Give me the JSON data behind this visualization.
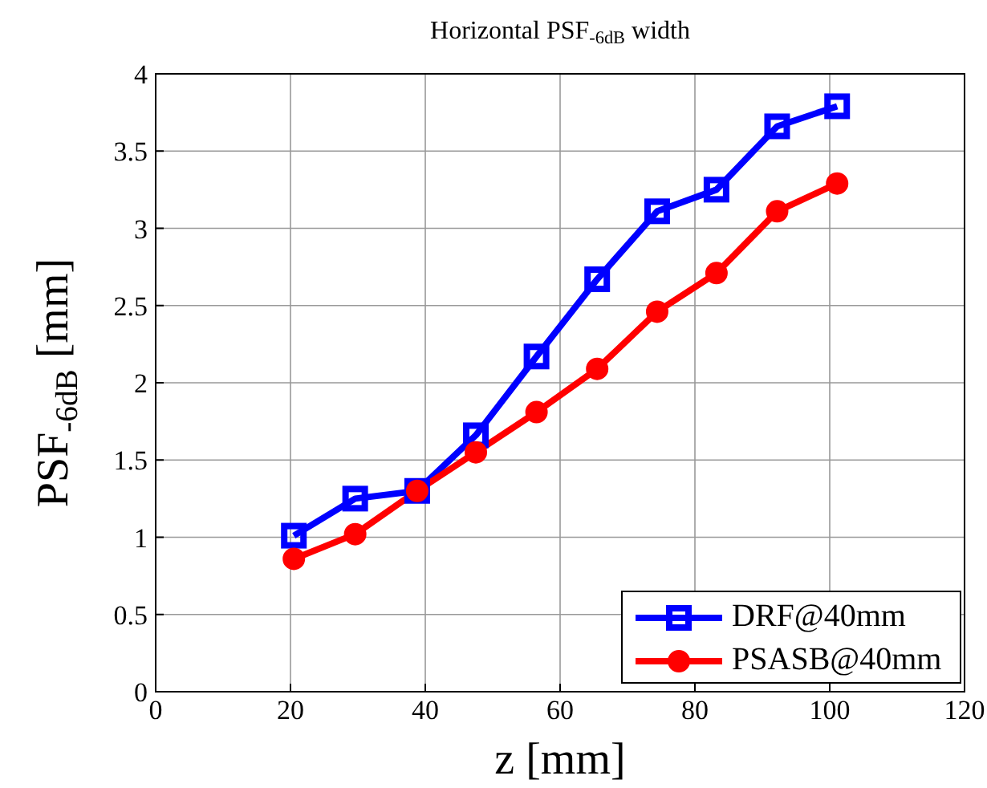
{
  "chart_data": {
    "type": "line",
    "title": "Horizontal PSF$_{-6dB}$ width",
    "xlabel": "z [mm]",
    "ylabel": "PSF$_{-6dB}$ [mm]",
    "x": [
      20.5,
      29.6,
      38.8,
      47.5,
      56.5,
      65.5,
      74.4,
      83.2,
      92.2,
      101.1
    ],
    "series": [
      {
        "name": "DRF@40mm",
        "color": "#0000ff",
        "marker": "square",
        "values": [
          1.01,
          1.25,
          1.3,
          1.66,
          2.17,
          2.67,
          3.11,
          3.25,
          3.66,
          3.79
        ]
      },
      {
        "name": "PSASB@40mm",
        "color": "#ff0000",
        "marker": "circle",
        "values": [
          0.86,
          1.02,
          1.3,
          1.55,
          1.81,
          2.09,
          2.46,
          2.71,
          3.11,
          3.29
        ]
      }
    ],
    "xlim": [
      0,
      120
    ],
    "xticks": [
      0,
      20,
      40,
      60,
      80,
      100,
      120
    ],
    "ylim": [
      0,
      4
    ],
    "yticks": [
      0,
      0.5,
      1,
      1.5,
      2,
      2.5,
      3,
      3.5,
      4
    ],
    "grid": true,
    "legend": "bottom right",
    "line_style": "solid"
  }
}
